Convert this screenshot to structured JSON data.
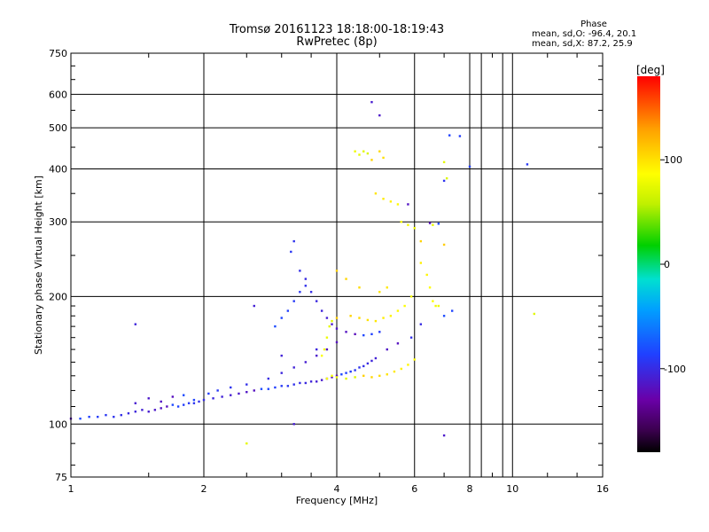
{
  "header": {
    "title": "Tromsø 20161123 18:18:00-18:19:43",
    "subtitle": "RwPretec (8p)"
  },
  "stats": {
    "heading": "Phase",
    "line_o": "mean, sd,O: -96.4, 20.1",
    "line_x": "mean, sd,X:  87.2, 25.9"
  },
  "colorbar": {
    "label": "[deg]",
    "ticks": [
      {
        "value": 100,
        "label": "100"
      },
      {
        "value": 0,
        "label": "0"
      },
      {
        "value": -100,
        "label": "-100"
      }
    ],
    "range": [
      -180,
      180
    ],
    "colors": [
      "#000000",
      "#3c0050",
      "#6a00a8",
      "#2040ff",
      "#00a0ff",
      "#00e0d0",
      "#00d000",
      "#c0f000",
      "#ffff00",
      "#ffa000",
      "#ff0000"
    ]
  },
  "chart_data": {
    "type": "scatter",
    "xlabel": "Frequency [MHz]",
    "ylabel": "Stationary phase Virtual Height [km]",
    "x_scale": "log",
    "y_scale": "log",
    "xlim": [
      1,
      16
    ],
    "ylim": [
      75,
      750
    ],
    "xticks": [
      1,
      2,
      4,
      6,
      8,
      10,
      16
    ],
    "xtick_labels": [
      "1",
      "2",
      "4",
      "6",
      "8",
      "10",
      "16"
    ],
    "yticks": [
      75,
      100,
      200,
      300,
      400,
      500,
      600,
      750
    ],
    "ytick_labels": [
      "75",
      "100",
      "200",
      "300",
      "400",
      "500",
      "600",
      "750"
    ],
    "grid": true,
    "series": [
      {
        "mode": "O",
        "phase_deg": -100,
        "points": [
          [
            1.0,
            103
          ],
          [
            1.05,
            103
          ],
          [
            1.1,
            104
          ],
          [
            1.15,
            104
          ],
          [
            1.2,
            105
          ],
          [
            1.25,
            104
          ],
          [
            1.3,
            105
          ],
          [
            1.35,
            106
          ],
          [
            1.4,
            107
          ],
          [
            1.45,
            108
          ],
          [
            1.5,
            107
          ],
          [
            1.55,
            108
          ],
          [
            1.6,
            109
          ],
          [
            1.65,
            110
          ],
          [
            1.7,
            111
          ],
          [
            1.75,
            110
          ],
          [
            1.8,
            111
          ],
          [
            1.85,
            112
          ],
          [
            1.9,
            112
          ],
          [
            1.95,
            113
          ],
          [
            2.0,
            114
          ],
          [
            2.1,
            115
          ],
          [
            2.2,
            116
          ],
          [
            2.3,
            117
          ],
          [
            2.4,
            118
          ],
          [
            2.5,
            119
          ],
          [
            2.6,
            120
          ],
          [
            2.7,
            121
          ],
          [
            2.8,
            121
          ],
          [
            2.9,
            122
          ],
          [
            3.0,
            123
          ],
          [
            3.1,
            123
          ],
          [
            3.2,
            124
          ],
          [
            3.3,
            125
          ],
          [
            3.4,
            125
          ],
          [
            3.5,
            126
          ],
          [
            3.6,
            126
          ],
          [
            3.7,
            127
          ],
          [
            3.8,
            128
          ],
          [
            3.9,
            129
          ],
          [
            4.0,
            130
          ],
          [
            4.1,
            131
          ],
          [
            4.2,
            132
          ],
          [
            4.3,
            133
          ],
          [
            4.4,
            134
          ],
          [
            4.5,
            136
          ],
          [
            4.6,
            137
          ],
          [
            4.7,
            139
          ],
          [
            4.8,
            141
          ],
          [
            4.9,
            143
          ],
          [
            1.4,
            112
          ],
          [
            1.5,
            115
          ],
          [
            1.6,
            113
          ],
          [
            1.7,
            116
          ],
          [
            1.8,
            117
          ],
          [
            1.9,
            114
          ],
          [
            2.05,
            118
          ],
          [
            2.15,
            120
          ],
          [
            2.3,
            122
          ],
          [
            2.5,
            124
          ],
          [
            2.8,
            128
          ],
          [
            3.0,
            132
          ],
          [
            3.2,
            136
          ],
          [
            3.4,
            140
          ],
          [
            3.6,
            145
          ],
          [
            3.8,
            150
          ],
          [
            4.0,
            156
          ],
          [
            2.9,
            170
          ],
          [
            3.0,
            178
          ],
          [
            3.1,
            185
          ],
          [
            3.2,
            195
          ],
          [
            3.3,
            205
          ],
          [
            3.4,
            212
          ],
          [
            3.5,
            205
          ],
          [
            3.6,
            195
          ],
          [
            3.7,
            185
          ],
          [
            3.8,
            178
          ],
          [
            3.9,
            172
          ],
          [
            4.0,
            168
          ],
          [
            4.2,
            165
          ],
          [
            4.4,
            163
          ],
          [
            4.6,
            162
          ],
          [
            4.8,
            163
          ],
          [
            5.0,
            165
          ],
          [
            3.15,
            255
          ],
          [
            3.2,
            270
          ],
          [
            3.3,
            230
          ],
          [
            3.4,
            220
          ],
          [
            1.4,
            172
          ],
          [
            2.6,
            190
          ],
          [
            4.8,
            575
          ],
          [
            5.0,
            535
          ],
          [
            5.8,
            330
          ],
          [
            6.5,
            298
          ],
          [
            6.8,
            297
          ],
          [
            7.2,
            480
          ],
          [
            7.6,
            478
          ],
          [
            10.8,
            410
          ],
          [
            7.0,
            375
          ],
          [
            5.9,
            160
          ],
          [
            6.2,
            172
          ],
          [
            3.6,
            150
          ],
          [
            3.0,
            145
          ],
          [
            3.2,
            100
          ],
          [
            7.0,
            94
          ],
          [
            5.2,
            150
          ],
          [
            5.5,
            155
          ],
          [
            7.0,
            180
          ],
          [
            7.3,
            185
          ],
          [
            8.0,
            405
          ]
        ]
      },
      {
        "mode": "X",
        "phase_deg": 90,
        "points": [
          [
            3.8,
            128
          ],
          [
            3.9,
            130
          ],
          [
            4.0,
            129
          ],
          [
            4.2,
            128
          ],
          [
            4.4,
            129
          ],
          [
            4.6,
            130
          ],
          [
            4.8,
            129
          ],
          [
            5.0,
            130
          ],
          [
            5.2,
            131
          ],
          [
            5.4,
            133
          ],
          [
            5.6,
            135
          ],
          [
            5.8,
            138
          ],
          [
            6.0,
            142
          ],
          [
            3.7,
            145
          ],
          [
            3.75,
            150
          ],
          [
            3.8,
            160
          ],
          [
            3.85,
            170
          ],
          [
            3.9,
            175
          ],
          [
            4.0,
            178
          ],
          [
            4.3,
            180
          ],
          [
            4.5,
            178
          ],
          [
            4.7,
            176
          ],
          [
            4.9,
            175
          ],
          [
            5.1,
            178
          ],
          [
            5.3,
            180
          ],
          [
            5.5,
            185
          ],
          [
            5.7,
            190
          ],
          [
            5.9,
            200
          ],
          [
            4.4,
            440
          ],
          [
            4.5,
            432
          ],
          [
            4.6,
            440
          ],
          [
            4.7,
            435
          ],
          [
            4.8,
            420
          ],
          [
            5.0,
            440
          ],
          [
            5.1,
            425
          ],
          [
            4.9,
            350
          ],
          [
            5.1,
            340
          ],
          [
            5.3,
            335
          ],
          [
            5.5,
            330
          ],
          [
            5.6,
            300
          ],
          [
            5.8,
            295
          ],
          [
            6.0,
            290
          ],
          [
            6.6,
            295
          ],
          [
            7.0,
            415
          ],
          [
            7.1,
            380
          ],
          [
            4.0,
            230
          ],
          [
            4.2,
            220
          ],
          [
            4.5,
            210
          ],
          [
            5.0,
            205
          ],
          [
            5.2,
            210
          ],
          [
            6.2,
            240
          ],
          [
            6.4,
            225
          ],
          [
            6.5,
            210
          ],
          [
            6.6,
            195
          ],
          [
            6.7,
            190
          ],
          [
            6.8,
            190
          ],
          [
            2.5,
            90
          ],
          [
            11.2,
            182
          ],
          [
            7.0,
            265
          ],
          [
            6.2,
            270
          ]
        ]
      }
    ]
  }
}
